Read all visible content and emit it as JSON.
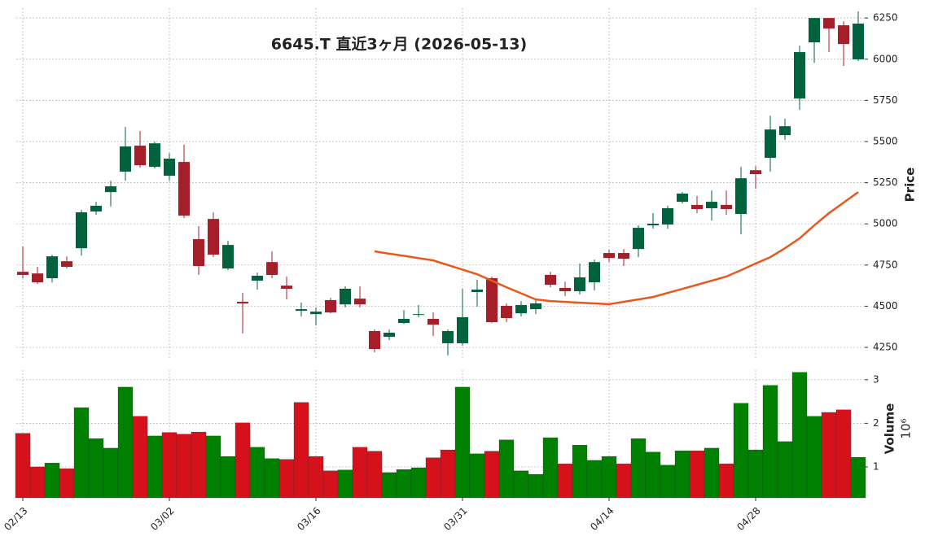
{
  "chart_data": {
    "type": "candlestick",
    "title": "6645.T 直近3ヶ月 (2026-05-13)",
    "categories": [
      "02/13",
      null,
      null,
      null,
      null,
      null,
      null,
      null,
      null,
      null,
      "03/02",
      null,
      null,
      null,
      null,
      null,
      null,
      null,
      null,
      null,
      "03/16",
      null,
      null,
      null,
      null,
      null,
      null,
      null,
      null,
      null,
      "03/31",
      null,
      null,
      null,
      null,
      null,
      null,
      null,
      null,
      null,
      "04/14",
      null,
      null,
      null,
      null,
      null,
      null,
      null,
      null,
      null,
      "04/28",
      null,
      null,
      null,
      null,
      null,
      null,
      null
    ],
    "open": [
      4709,
      4699,
      4670,
      4773,
      4852,
      5075,
      5193,
      5317,
      5475,
      5346,
      5292,
      5376,
      4907,
      5030,
      4729,
      4527,
      4655,
      4768,
      4625,
      4472,
      4452,
      4537,
      4511,
      4546,
      4349,
      4314,
      4398,
      4447,
      4423,
      4275,
      4275,
      4586,
      4670,
      4502,
      4457,
      4482,
      4690,
      4611,
      4591,
      4645,
      4823,
      4823,
      4847,
      4991,
      4996,
      5134,
      5115,
      5095,
      5115,
      5060,
      5326,
      5401,
      5539,
      5761,
      6102,
      6250,
      6206,
      5999
    ],
    "high": [
      4862,
      4739,
      4813,
      4803,
      5085,
      5134,
      5262,
      5588,
      5564,
      5499,
      5430,
      5480,
      4986,
      5070,
      4897,
      4581,
      4704,
      4833,
      4680,
      4522,
      4492,
      4551,
      4620,
      4620,
      4359,
      4359,
      4477,
      4507,
      4462,
      4359,
      4605,
      4660,
      4680,
      4517,
      4531,
      4536,
      4709,
      4650,
      4759,
      4783,
      4843,
      4847,
      4991,
      5065,
      5110,
      5193,
      5169,
      5203,
      5203,
      5346,
      5351,
      5657,
      5638,
      6082,
      6250,
      6250,
      6230,
      6290
    ],
    "low": [
      4670,
      4635,
      4645,
      4729,
      4808,
      5055,
      5105,
      5262,
      5341,
      5336,
      5262,
      5035,
      4690,
      4798,
      4719,
      4334,
      4601,
      4670,
      4541,
      4438,
      4383,
      4457,
      4492,
      4492,
      4220,
      4294,
      4393,
      4433,
      4319,
      4201,
      4260,
      4497,
      4398,
      4403,
      4438,
      4452,
      4615,
      4561,
      4571,
      4596,
      4768,
      4744,
      4798,
      4971,
      4971,
      5124,
      5065,
      5020,
      5055,
      4936,
      5213,
      5317,
      5509,
      5692,
      5978,
      6043,
      5959,
      5989
    ],
    "close": [
      4690,
      4645,
      4803,
      4739,
      5070,
      5110,
      5228,
      5470,
      5356,
      5489,
      5396,
      5050,
      4744,
      4813,
      4872,
      4517,
      4685,
      4690,
      4606,
      4482,
      4467,
      4462,
      4606,
      4511,
      4240,
      4339,
      4423,
      4452,
      4388,
      4349,
      4433,
      4601,
      4403,
      4428,
      4507,
      4517,
      4630,
      4591,
      4675,
      4768,
      4793,
      4788,
      4976,
      5001,
      5095,
      5184,
      5090,
      5134,
      5090,
      5277,
      5302,
      5573,
      5593,
      6043,
      6250,
      6186,
      6092,
      6216
    ],
    "volume": [
      1.77,
      1.0,
      1.09,
      0.96,
      2.36,
      1.65,
      1.43,
      2.83,
      2.16,
      1.71,
      1.79,
      1.75,
      1.8,
      1.71,
      1.24,
      2.01,
      1.45,
      1.19,
      1.17,
      2.48,
      1.24,
      0.91,
      0.93,
      1.45,
      1.36,
      0.87,
      0.94,
      0.98,
      1.21,
      1.39,
      2.83,
      1.3,
      1.36,
      1.62,
      0.91,
      0.83,
      1.67,
      1.07,
      1.5,
      1.15,
      1.24,
      1.07,
      1.65,
      1.34,
      1.04,
      1.37,
      1.37,
      1.43,
      1.07,
      2.46,
      1.39,
      2.87,
      1.58,
      3.17,
      2.16,
      2.25,
      2.31,
      1.22
    ],
    "moving_average": [
      null,
      null,
      null,
      null,
      null,
      null,
      null,
      null,
      null,
      null,
      null,
      null,
      null,
      null,
      null,
      null,
      null,
      null,
      null,
      null,
      null,
      null,
      null,
      null,
      4833,
      4819,
      4806,
      4792,
      4778,
      4750,
      4722,
      4694,
      4655,
      4615,
      4578,
      4541,
      4531,
      4526,
      4521,
      4517,
      4512,
      4527,
      4541,
      4556,
      4581,
      4605,
      4630,
      4655,
      4680,
      4719,
      4759,
      4798,
      4852,
      4912,
      4991,
      5065,
      5129,
      5193
    ],
    "ylim": [
      4186,
      6310
    ],
    "yticks": [
      4250,
      4500,
      4750,
      5000,
      5250,
      5500,
      5750,
      6000,
      6250
    ],
    "ylabel": "Price",
    "y2lim": [
      0.29,
      3.22
    ],
    "y2ticks": [
      1,
      2,
      3
    ],
    "y2label": "Volume",
    "y2_multiplier": "10⁶",
    "grid": true,
    "up_color": "#00633d",
    "down_color": "#a51f2b",
    "volume_up_color": "#008000",
    "volume_down_color": "#d5111c",
    "ma_color": "#e8581d"
  }
}
